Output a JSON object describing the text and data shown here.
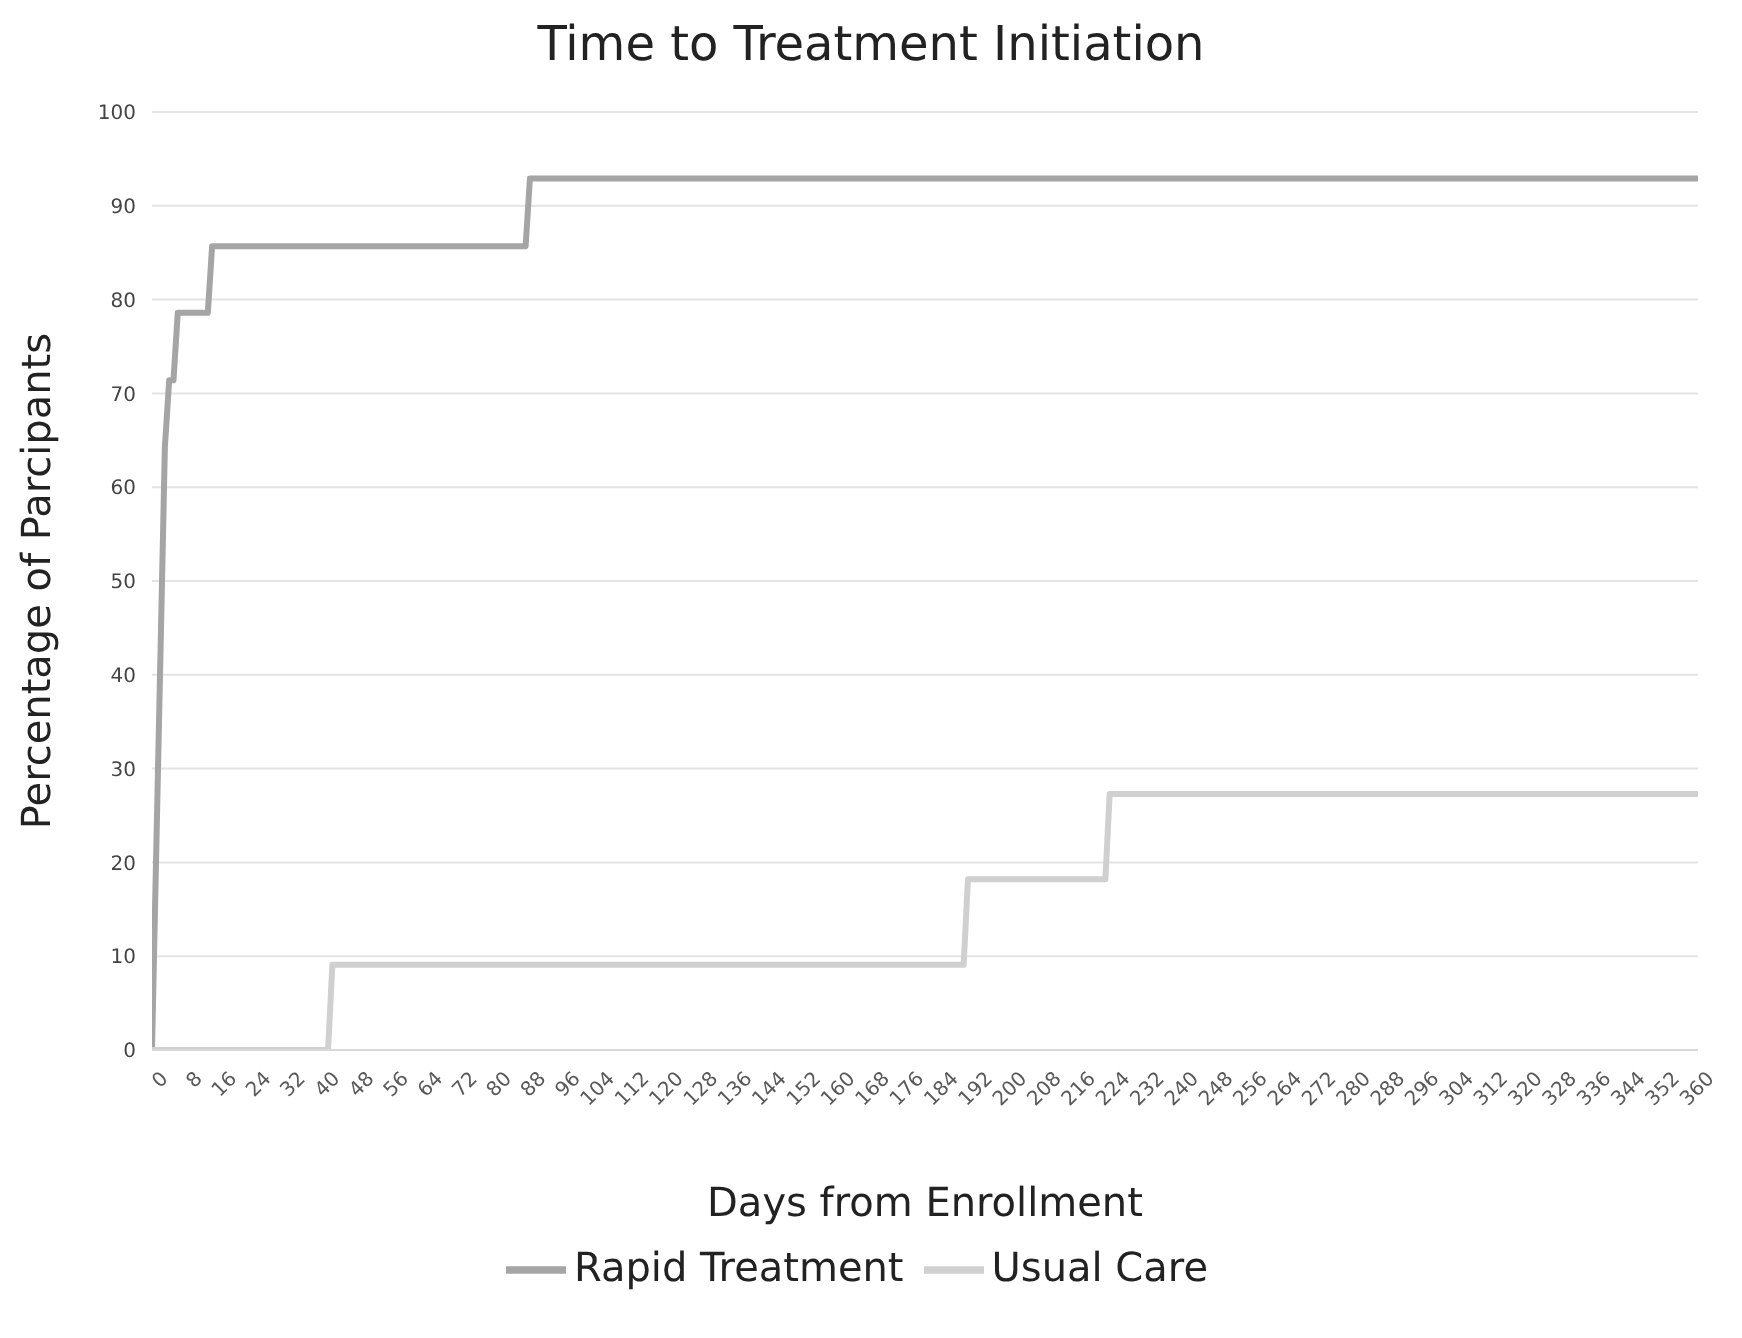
{
  "chart_data": {
    "type": "line",
    "title": "Time to Treatment Initiation",
    "xlabel": "Days from Enrollment",
    "ylabel": "Percentage of Parcipants",
    "series": [
      {
        "name": "Rapid Treatment",
        "color": "#a5a5a5",
        "x": [
          0,
          3,
          4,
          5,
          6,
          13,
          14,
          87,
          88,
          360
        ],
        "values": [
          0,
          64.3,
          71.4,
          71.4,
          78.6,
          78.6,
          85.7,
          85.7,
          92.9,
          92.9
        ]
      },
      {
        "name": "Usual Care",
        "color": "#d0d0d0",
        "x": [
          0,
          41,
          42,
          189,
          190,
          222,
          223,
          360
        ],
        "values": [
          0,
          0,
          9.1,
          9.1,
          18.2,
          18.2,
          27.3,
          27.3
        ]
      }
    ],
    "xlim": [
      0,
      360
    ],
    "xticks": [
      0,
      8,
      16,
      24,
      32,
      40,
      48,
      56,
      64,
      72,
      80,
      88,
      96,
      104,
      112,
      120,
      128,
      136,
      144,
      152,
      160,
      168,
      176,
      184,
      192,
      200,
      208,
      216,
      224,
      232,
      240,
      248,
      256,
      264,
      272,
      280,
      288,
      296,
      304,
      312,
      320,
      328,
      336,
      344,
      352,
      360
    ],
    "ylim": [
      0,
      100
    ],
    "yticks": [
      0,
      10,
      20,
      30,
      40,
      50,
      60,
      70,
      80,
      90,
      100
    ],
    "grid": "y",
    "legend": "bottom",
    "marker": "none",
    "line_style": "solid"
  }
}
